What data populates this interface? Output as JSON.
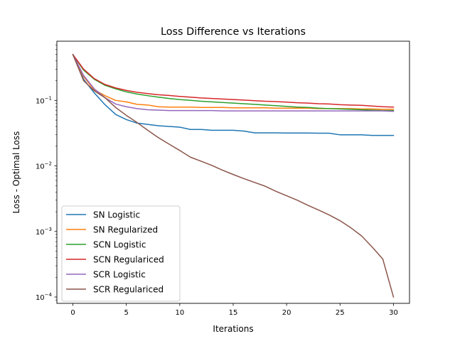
{
  "chart_data": {
    "type": "line",
    "title": "Loss Difference vs Iterations",
    "xlabel": "Iterations",
    "ylabel": "Loss - Optimal Loss",
    "yscale": "log",
    "xlim": [
      -1.5,
      31.5
    ],
    "ylim": [
      8e-05,
      0.8
    ],
    "xticks": [
      0,
      5,
      10,
      15,
      20,
      25,
      30
    ],
    "yticks": [
      {
        "value": 0.0001,
        "base": "10",
        "exp": "−4"
      },
      {
        "value": 0.001,
        "base": "10",
        "exp": "−3"
      },
      {
        "value": 0.01,
        "base": "10",
        "exp": "−2"
      },
      {
        "value": 0.1,
        "base": "10",
        "exp": "−1"
      }
    ],
    "grid": false,
    "legend_position": "lower-left",
    "x": [
      0,
      1,
      2,
      3,
      4,
      5,
      6,
      7,
      8,
      9,
      10,
      11,
      12,
      13,
      14,
      15,
      16,
      17,
      18,
      19,
      20,
      21,
      22,
      23,
      24,
      25,
      26,
      27,
      28,
      29,
      30
    ],
    "series": [
      {
        "name": "SN Logistic",
        "color": "#1f77b4",
        "values": [
          0.5,
          0.21,
          0.13,
          0.086,
          0.061,
          0.051,
          0.045,
          0.043,
          0.041,
          0.04,
          0.039,
          0.036,
          0.036,
          0.035,
          0.035,
          0.035,
          0.034,
          0.032,
          0.032,
          0.032,
          0.0318,
          0.0318,
          0.0318,
          0.0316,
          0.0316,
          0.0298,
          0.0298,
          0.0298,
          0.0292,
          0.0292,
          0.0292
        ]
      },
      {
        "name": "SN Regularized",
        "color": "#ff7f0e",
        "values": [
          0.5,
          0.23,
          0.145,
          0.118,
          0.1,
          0.095,
          0.087,
          0.085,
          0.08,
          0.079,
          0.079,
          0.079,
          0.078,
          0.078,
          0.078,
          0.077,
          0.077,
          0.077,
          0.077,
          0.076,
          0.076,
          0.076,
          0.076,
          0.075,
          0.075,
          0.075,
          0.075,
          0.074,
          0.074,
          0.073,
          0.073
        ]
      },
      {
        "name": "SCN Logistic",
        "color": "#2ca02c",
        "values": [
          0.5,
          0.29,
          0.21,
          0.17,
          0.15,
          0.135,
          0.125,
          0.118,
          0.112,
          0.107,
          0.103,
          0.1,
          0.097,
          0.095,
          0.093,
          0.091,
          0.089,
          0.087,
          0.085,
          0.083,
          0.081,
          0.079,
          0.078,
          0.076,
          0.075,
          0.074,
          0.073,
          0.072,
          0.071,
          0.07,
          0.07
        ]
      },
      {
        "name": "SCN Regulariced",
        "color": "#d62728",
        "values": [
          0.5,
          0.3,
          0.215,
          0.175,
          0.155,
          0.142,
          0.133,
          0.127,
          0.122,
          0.119,
          0.115,
          0.112,
          0.109,
          0.107,
          0.105,
          0.103,
          0.101,
          0.099,
          0.097,
          0.096,
          0.094,
          0.092,
          0.091,
          0.089,
          0.088,
          0.086,
          0.085,
          0.084,
          0.082,
          0.08,
          0.079
        ]
      },
      {
        "name": "SCR Logistic",
        "color": "#9467bd",
        "values": [
          0.5,
          0.24,
          0.15,
          0.11,
          0.088,
          0.08,
          0.075,
          0.072,
          0.071,
          0.07,
          0.07,
          0.07,
          0.07,
          0.07,
          0.069,
          0.069,
          0.069,
          0.069,
          0.069,
          0.069,
          0.069,
          0.069,
          0.069,
          0.069,
          0.069,
          0.069,
          0.069,
          0.069,
          0.069,
          0.069,
          0.068
        ]
      },
      {
        "name": "SCR Regulariced",
        "color": "#8c564b",
        "values": [
          0.5,
          0.2,
          0.14,
          0.11,
          0.078,
          0.059,
          0.046,
          0.035,
          0.027,
          0.0215,
          0.0172,
          0.0136,
          0.0118,
          0.0102,
          0.0086,
          0.0074,
          0.0064,
          0.0056,
          0.0049,
          0.0041,
          0.0035,
          0.003,
          0.0025,
          0.00212,
          0.00178,
          0.00146,
          0.00114,
          0.00086,
          0.00058,
          0.00038,
          0.0001
        ]
      }
    ]
  }
}
